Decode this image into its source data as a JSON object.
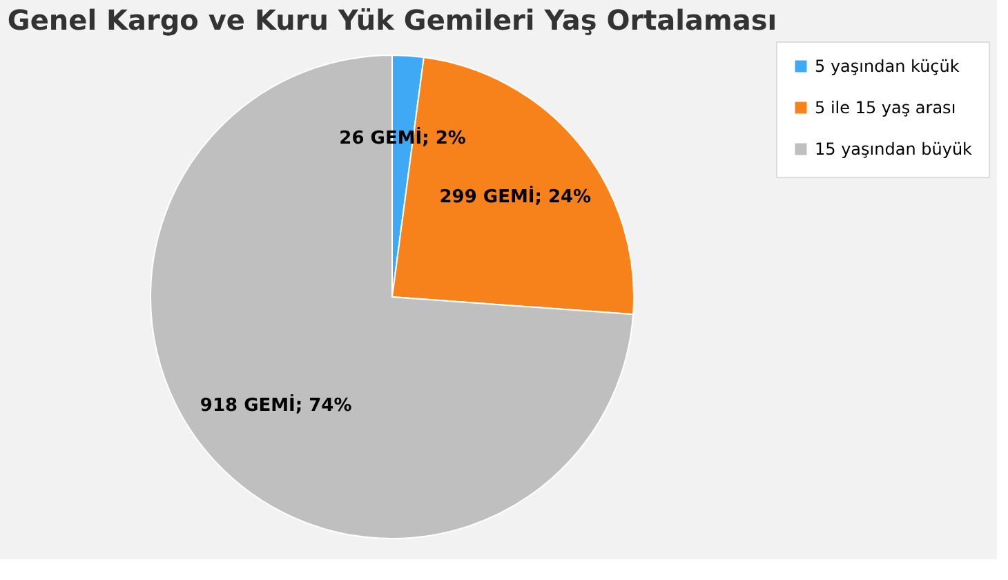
{
  "chart_data": {
    "type": "pie",
    "title": "Genel Kargo ve Kuru Yük Gemileri Yaş Ortalaması",
    "categories": [
      "5 yaşından küçük",
      "5 ile 15 yaş arası",
      "15 yaşından büyük"
    ],
    "values": [
      26,
      299,
      918
    ],
    "colors": [
      "#3fa9f5",
      "#f7821b",
      "#bfbfbf"
    ],
    "value_labels": [
      "26 GEMİ; 2%",
      "299 GEMİ; 24%",
      "918 GEMİ; 74%"
    ],
    "legend": "right"
  }
}
